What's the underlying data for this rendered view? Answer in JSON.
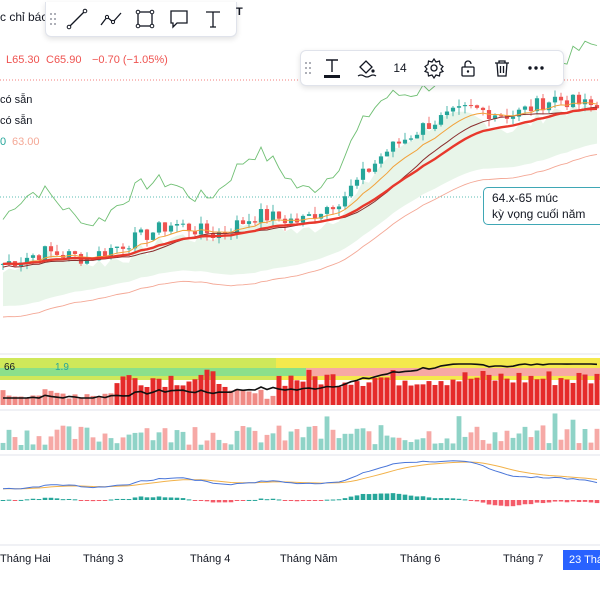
{
  "header": {
    "title_fragment": "c chỉ báo",
    "ohlc_low_label": "L65.30",
    "ohlc_close_label": "C65.90",
    "ohlc_change": "−0.70 (−1.05%)",
    "legend_1": "có sẵn",
    "legend_2": "có sẵn",
    "legend_3_prefix": "0",
    "legend_3_value": "63.00",
    "sub_value_1": "66",
    "sub_value_2": "1.9"
  },
  "drawing_toolbar": {
    "tools": [
      "trend-line-icon",
      "path-icon",
      "rectangle-icon",
      "callout-icon",
      "text-icon"
    ],
    "marker": "T"
  },
  "text_toolbar": {
    "font_size": "14",
    "tools": [
      "text-color-icon",
      "fill-color-icon",
      "settings-icon",
      "lock-icon",
      "trash-icon",
      "more-icon"
    ]
  },
  "annotation": {
    "line1": "64.x-65 múc",
    "line2": "kỳ vọng cuối năm"
  },
  "colors": {
    "up": "#26a69a",
    "down": "#ef5350",
    "ema_red": "#e8382c",
    "ema_orange": "#f2a23a",
    "cloud": "#e8f5e9",
    "cloud_upper": "#6fbf73",
    "cloud_lower": "#f4a896",
    "macd": "#4a76d9",
    "signal": "#f2b24a",
    "accent": "#2962ff"
  },
  "chart_data": {
    "type": "line",
    "x_axis_labels": [
      "Tháng Hai",
      "Tháng 3",
      "Tháng 4",
      "Tháng Năm",
      "Tháng 6",
      "Tháng 7"
    ],
    "current_date_label": "23 Thá",
    "price_close_path": [
      51.5,
      52.6,
      52.0,
      53.6,
      55.2,
      54.2,
      56.0,
      55.4,
      57.6,
      61.8,
      64.4,
      65.8,
      65.2,
      66.8,
      65.9
    ],
    "last": {
      "low": 65.3,
      "close": 65.9,
      "change": -0.7,
      "change_pct": -1.05
    },
    "annotation_target_range": "64.x-65"
  }
}
